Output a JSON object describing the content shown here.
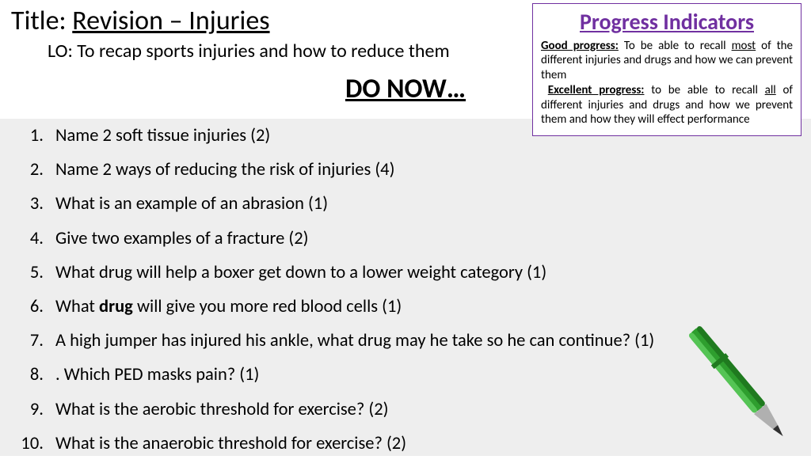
{
  "title": {
    "label": "Title",
    "value": "Revision – Injuries"
  },
  "lo": "LO: To recap sports injuries and how to reduce them",
  "do_now": "DO NOW…",
  "questions": [
    "Name 2 soft tissue injuries (2)",
    "Name 2 ways of reducing the risk of injuries (4)",
    "What is an example of an abrasion (1)",
    "Give two examples of a fracture (2)",
    "What drug will help a boxer get down to a lower weight category (1)",
    "What drug will give you more red blood cells (1)",
    "A high jumper has injured his ankle, what drug may he take so he can continue? (1)",
    ". Which PED masks pain? (1)",
    "What is the aerobic threshold for exercise? (2)",
    "What is the anaerobic threshold for exercise? (2)"
  ],
  "question_bold_word_index": 5,
  "question_bold_word": "drug",
  "progress": {
    "title": "Progress Indicators",
    "good_label": "Good progress:",
    "good_text_pre": " To be able to recall ",
    "good_u": "most",
    "good_text_post": " of the different injuries and drugs and how we can prevent them",
    "excellent_label": "Excellent progress:",
    "excellent_text_pre": " to be able to recall ",
    "excellent_u": "all",
    "excellent_text_post": " of different injuries and drugs and how we prevent them and how they will effect performance"
  },
  "colors": {
    "progress_border": "#7030a0",
    "progress_title": "#7030a0",
    "questions_bg": "#eeeeee",
    "pen_body": "#2e9e2e",
    "pen_dark": "#1f7a1f",
    "pen_tip": "#b0b0b0"
  }
}
